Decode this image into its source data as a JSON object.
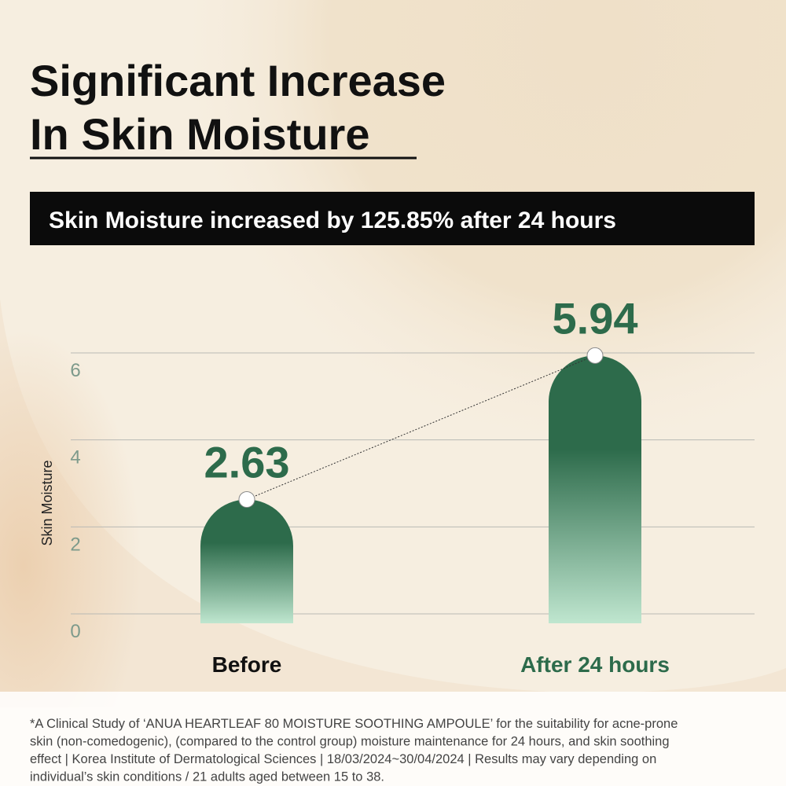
{
  "chart_data": {
    "type": "bar",
    "title": [
      "Significant Increase",
      "In Skin Moisture"
    ],
    "subtitle": "Skin Moisture increased by 125.85% after 24 hours",
    "y_label": "Skin Moisture",
    "categories": [
      "Before",
      "After 24 hours"
    ],
    "category_colors": [
      "#111111",
      "#2d6b4b"
    ],
    "values": [
      2.63,
      5.94
    ],
    "color": "#2d6b4b",
    "ylim": [
      0,
      6
    ],
    "yticks": [
      0,
      2,
      4,
      6
    ],
    "grid": true,
    "footnote": [
      "*A Clinical Study of ‘ANUA HEARTLEAF 80 MOISTURE SOOTHING AMPOULE’ for the suitability for acne-prone",
      "skin (non-comedogenic), (compared to the control group) moisture maintenance for 24 hours, and skin soothing",
      "effect | Korea Institute of Dermatological Sciences | 18/03/2024~30/04/2024 | Results may vary depending on",
      "individual’s skin conditions / 21 adults aged between 15 to 38."
    ]
  }
}
